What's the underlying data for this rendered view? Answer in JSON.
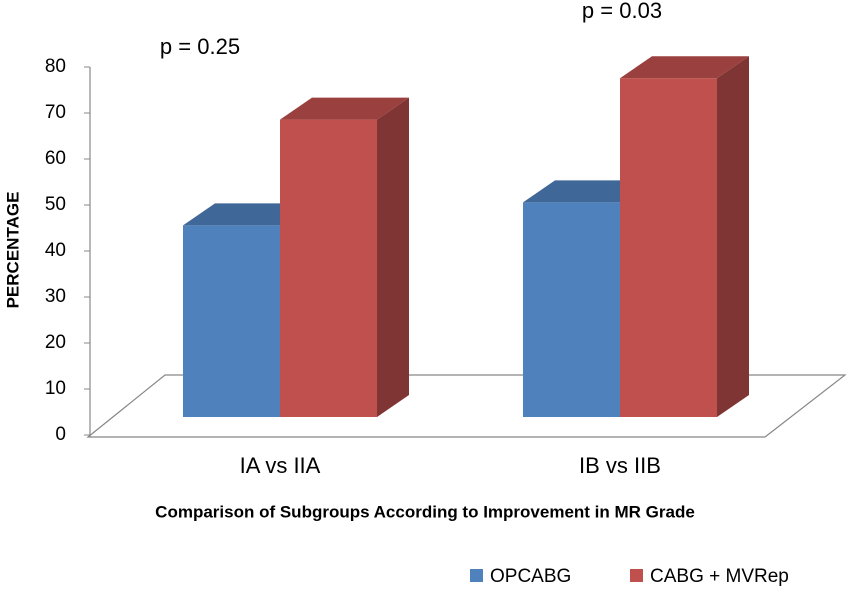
{
  "chart_data": {
    "type": "bar3d",
    "annotations": [
      "p = 0.25",
      "p = 0.03"
    ],
    "x_label": "Comparison of Subgroups According to Improvement in MR Grade",
    "y_label": "PERCENTAGE",
    "categories": [
      "IA vs IIA",
      "IB vs IIB"
    ],
    "series": [
      {
        "name": "OPCABG",
        "color": "#4f81bd",
        "values": [
          46,
          51
        ]
      },
      {
        "name": "CABG + MVRep",
        "color": "#c0504d",
        "values": [
          69,
          78
        ]
      }
    ],
    "ylim": [
      0,
      80
    ],
    "yticks": [
      0,
      10,
      20,
      30,
      40,
      50,
      60,
      70,
      80
    ],
    "legend": "bottom-right"
  }
}
